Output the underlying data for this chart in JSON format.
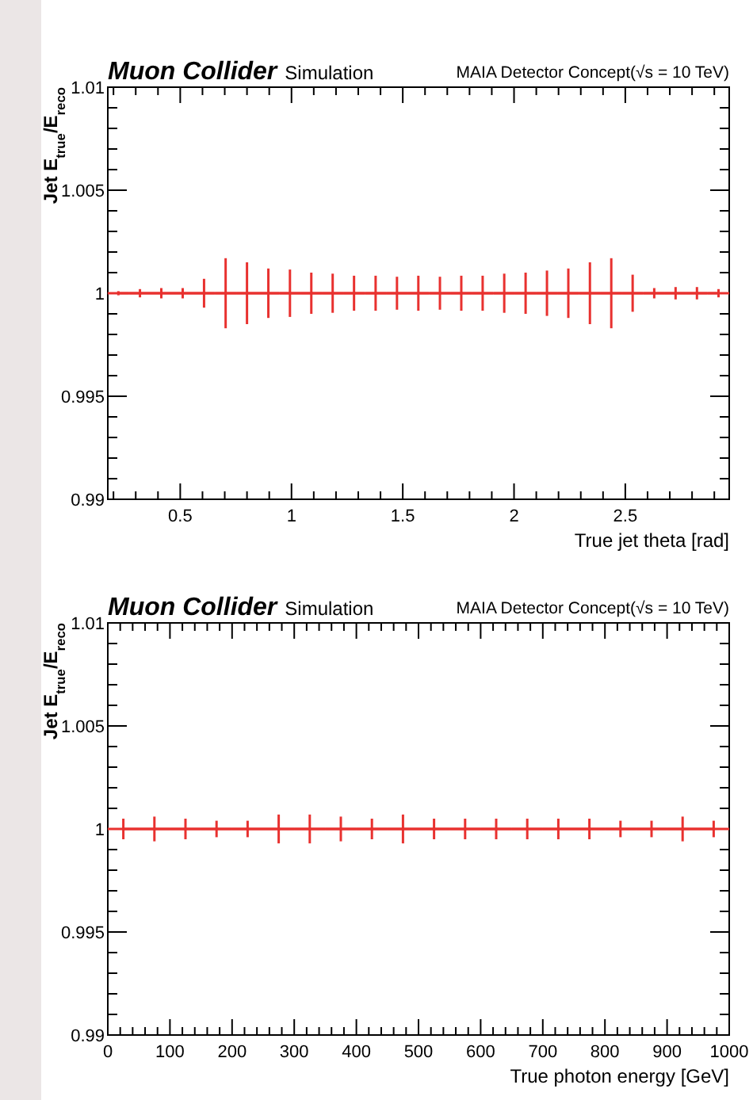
{
  "chart_data": [
    {
      "type": "line",
      "title": "Muon Collider",
      "subtitle": "Simulation",
      "annotations": [
        "MAIA Detector Concept(√s = 10 TeV)"
      ],
      "xlabel": "True jet theta [rad]",
      "ylabel": "Jet E$_{true}$/E$_{reco}$",
      "x": [
        0.222,
        0.319,
        0.415,
        0.511,
        0.607,
        0.704,
        0.8,
        0.896,
        0.993,
        1.089,
        1.185,
        1.281,
        1.378,
        1.474,
        1.57,
        1.667,
        1.763,
        1.859,
        1.956,
        2.052,
        2.148,
        2.244,
        2.341,
        2.437,
        2.533,
        2.63,
        2.726,
        2.822,
        2.919
      ],
      "series": [
        {
          "color": "#e8312f",
          "values": [
            1,
            1,
            1,
            1,
            1,
            1,
            1,
            1,
            1,
            1,
            1,
            1,
            1,
            1,
            1,
            1,
            1,
            1,
            1,
            1,
            1,
            1,
            1,
            1,
            1,
            1,
            1,
            1,
            1
          ],
          "errors": [
            0.0001,
            0.0002,
            0.00025,
            0.00025,
            0.0007,
            0.0017,
            0.0015,
            0.0012,
            0.00115,
            0.001,
            0.00095,
            0.00085,
            0.00085,
            0.0008,
            0.00085,
            0.0008,
            0.00085,
            0.00085,
            0.00095,
            0.001,
            0.0011,
            0.0012,
            0.0015,
            0.0017,
            0.0009,
            0.00025,
            0.0003,
            0.0003,
            0.0002
          ],
          "xerrors": [
            0.048,
            0.048,
            0.048,
            0.048,
            0.048,
            0.048,
            0.048,
            0.048,
            0.048,
            0.048,
            0.048,
            0.048,
            0.048,
            0.048,
            0.048,
            0.048,
            0.048,
            0.048,
            0.048,
            0.048,
            0.048,
            0.048,
            0.048,
            0.048,
            0.048,
            0.048,
            0.048,
            0.048,
            0.048
          ]
        }
      ],
      "marker": "none",
      "grid": false,
      "xlim": [
        0.1745,
        2.967
      ],
      "xticks": [
        {
          "value": 0.2,
          "label": null
        },
        {
          "value": 0.3,
          "label": null
        },
        {
          "value": 0.4,
          "label": null
        },
        0.5,
        {
          "value": 0.6,
          "label": null
        },
        {
          "value": 0.7,
          "label": null
        },
        {
          "value": 0.8,
          "label": null
        },
        {
          "value": 0.9,
          "label": null
        },
        1,
        {
          "value": 1.1,
          "label": null
        },
        {
          "value": 1.2,
          "label": null
        },
        {
          "value": 1.3,
          "label": null
        },
        {
          "value": 1.4,
          "label": null
        },
        1.5,
        {
          "value": 1.6,
          "label": null
        },
        {
          "value": 1.7,
          "label": null
        },
        {
          "value": 1.8,
          "label": null
        },
        {
          "value": 1.9,
          "label": null
        },
        2,
        {
          "value": 2.1,
          "label": null
        },
        {
          "value": 2.2,
          "label": null
        },
        {
          "value": 2.3,
          "label": null
        },
        {
          "value": 2.4,
          "label": null
        },
        2.5,
        {
          "value": 2.6,
          "label": null
        },
        {
          "value": 2.7,
          "label": null
        },
        {
          "value": 2.8,
          "label": null
        },
        {
          "value": 2.9,
          "label": null
        }
      ],
      "ylim": [
        0.99,
        1.01
      ],
      "yticks": [
        0.99,
        {
          "value": 0.991,
          "label": null
        },
        {
          "value": 0.992,
          "label": null
        },
        {
          "value": 0.993,
          "label": null
        },
        {
          "value": 0.994,
          "label": null
        },
        0.995,
        {
          "value": 0.996,
          "label": null
        },
        {
          "value": 0.997,
          "label": null
        },
        {
          "value": 0.998,
          "label": null
        },
        {
          "value": 0.999,
          "label": null
        },
        1,
        {
          "value": 1.001,
          "label": null
        },
        {
          "value": 1.002,
          "label": null
        },
        {
          "value": 1.003,
          "label": null
        },
        {
          "value": 1.004,
          "label": null
        },
        1.005,
        {
          "value": 1.006,
          "label": null
        },
        {
          "value": 1.007,
          "label": null
        },
        {
          "value": 1.008,
          "label": null
        },
        {
          "value": 1.009,
          "label": null
        },
        1.01
      ]
    },
    {
      "type": "line",
      "title": "Muon Collider",
      "subtitle": "Simulation",
      "annotations": [
        "MAIA Detector Concept(√s = 10 TeV)"
      ],
      "xlabel": "True photon energy [GeV]",
      "ylabel": "Jet E$_{true}$/E$_{reco}$",
      "x": [
        25,
        75,
        125,
        175,
        225,
        275,
        325,
        375,
        425,
        475,
        525,
        575,
        625,
        675,
        725,
        775,
        825,
        875,
        925,
        975
      ],
      "series": [
        {
          "color": "#e8312f",
          "values": [
            1,
            1,
            1,
            1,
            1,
            1,
            1,
            1,
            1,
            1,
            1,
            1,
            1,
            1,
            1,
            1,
            1,
            1,
            1,
            1
          ],
          "errors": [
            0.0005,
            0.0006,
            0.0005,
            0.0004,
            0.0004,
            0.0007,
            0.0007,
            0.0006,
            0.0005,
            0.0007,
            0.0005,
            0.0005,
            0.0005,
            0.0005,
            0.0005,
            0.0005,
            0.0004,
            0.0004,
            0.0006,
            0.0004
          ],
          "xerrors": [
            25,
            25,
            25,
            25,
            25,
            25,
            25,
            25,
            25,
            25,
            25,
            25,
            25,
            25,
            25,
            25,
            25,
            25,
            25,
            25
          ]
        }
      ],
      "marker": "none",
      "grid": false,
      "xlim": [
        0,
        1000
      ],
      "xticks": [
        0,
        {
          "value": 20,
          "label": null
        },
        {
          "value": 40,
          "label": null
        },
        {
          "value": 60,
          "label": null
        },
        {
          "value": 80,
          "label": null
        },
        100,
        {
          "value": 120,
          "label": null
        },
        {
          "value": 140,
          "label": null
        },
        {
          "value": 160,
          "label": null
        },
        {
          "value": 180,
          "label": null
        },
        200,
        {
          "value": 220,
          "label": null
        },
        {
          "value": 240,
          "label": null
        },
        {
          "value": 260,
          "label": null
        },
        {
          "value": 280,
          "label": null
        },
        300,
        {
          "value": 320,
          "label": null
        },
        {
          "value": 340,
          "label": null
        },
        {
          "value": 360,
          "label": null
        },
        {
          "value": 380,
          "label": null
        },
        400,
        {
          "value": 420,
          "label": null
        },
        {
          "value": 440,
          "label": null
        },
        {
          "value": 460,
          "label": null
        },
        {
          "value": 480,
          "label": null
        },
        500,
        {
          "value": 520,
          "label": null
        },
        {
          "value": 540,
          "label": null
        },
        {
          "value": 560,
          "label": null
        },
        {
          "value": 580,
          "label": null
        },
        600,
        {
          "value": 620,
          "label": null
        },
        {
          "value": 640,
          "label": null
        },
        {
          "value": 660,
          "label": null
        },
        {
          "value": 680,
          "label": null
        },
        700,
        {
          "value": 720,
          "label": null
        },
        {
          "value": 740,
          "label": null
        },
        {
          "value": 760,
          "label": null
        },
        {
          "value": 780,
          "label": null
        },
        800,
        {
          "value": 820,
          "label": null
        },
        {
          "value": 840,
          "label": null
        },
        {
          "value": 860,
          "label": null
        },
        {
          "value": 880,
          "label": null
        },
        900,
        {
          "value": 920,
          "label": null
        },
        {
          "value": 940,
          "label": null
        },
        {
          "value": 960,
          "label": null
        },
        {
          "value": 980,
          "label": null
        },
        1000
      ],
      "ylim": [
        0.99,
        1.01
      ],
      "yticks": [
        0.99,
        {
          "value": 0.991,
          "label": null
        },
        {
          "value": 0.992,
          "label": null
        },
        {
          "value": 0.993,
          "label": null
        },
        {
          "value": 0.994,
          "label": null
        },
        0.995,
        {
          "value": 0.996,
          "label": null
        },
        {
          "value": 0.997,
          "label": null
        },
        {
          "value": 0.998,
          "label": null
        },
        {
          "value": 0.999,
          "label": null
        },
        1,
        {
          "value": 1.001,
          "label": null
        },
        {
          "value": 1.002,
          "label": null
        },
        {
          "value": 1.003,
          "label": null
        },
        {
          "value": 1.004,
          "label": null
        },
        1.005,
        {
          "value": 1.006,
          "label": null
        },
        {
          "value": 1.007,
          "label": null
        },
        {
          "value": 1.008,
          "label": null
        },
        {
          "value": 1.009,
          "label": null
        },
        1.01
      ]
    }
  ]
}
